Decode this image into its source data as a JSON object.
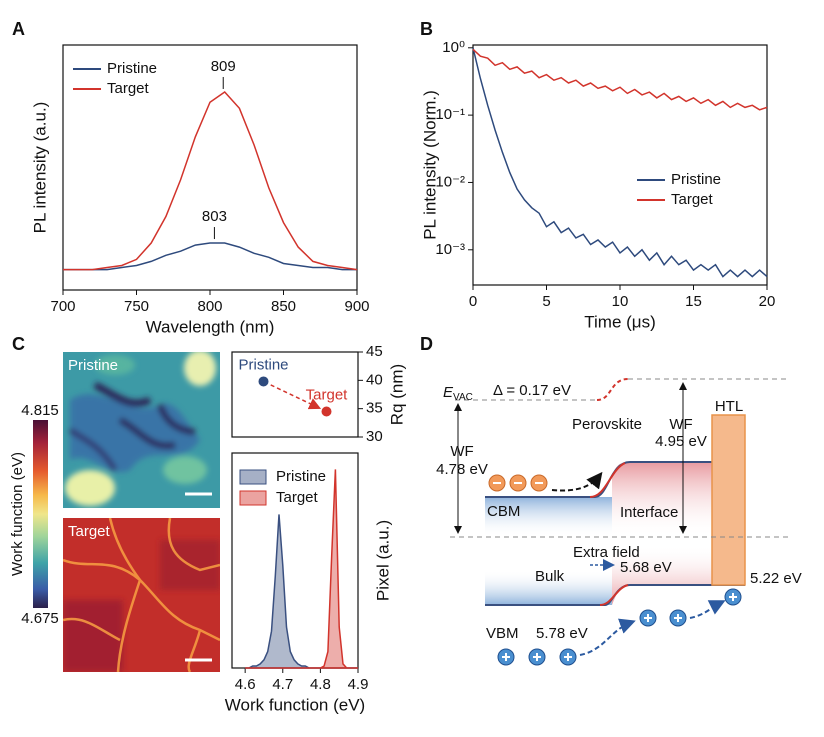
{
  "panel_labels": [
    "A",
    "B",
    "C",
    "D"
  ],
  "chart_data": [
    {
      "type": "line",
      "xlabel": "Wavelength (nm)",
      "ylabel": "PL intensity (a.u.)",
      "legend": "upper left",
      "x": [
        700,
        710,
        720,
        730,
        740,
        750,
        760,
        770,
        780,
        790,
        800,
        810,
        820,
        830,
        840,
        850,
        860,
        870,
        880,
        890,
        900
      ],
      "series": [
        {
          "name": "Pristine",
          "color": "#2e4a7d",
          "values": [
            0.1,
            0.1,
            0.1,
            0.1,
            0.11,
            0.12,
            0.14,
            0.17,
            0.19,
            0.22,
            0.23,
            0.23,
            0.21,
            0.18,
            0.16,
            0.13,
            0.12,
            0.11,
            0.11,
            0.1,
            0.1
          ],
          "peak": 803
        },
        {
          "name": "Target",
          "color": "#d2342c",
          "values": [
            0.1,
            0.1,
            0.1,
            0.11,
            0.12,
            0.15,
            0.23,
            0.36,
            0.54,
            0.75,
            0.92,
            0.97,
            0.89,
            0.71,
            0.5,
            0.33,
            0.21,
            0.14,
            0.12,
            0.11,
            0.1
          ],
          "peak": 809
        }
      ],
      "xlim": [
        700,
        900
      ],
      "xticks": [
        700,
        750,
        800,
        850,
        900
      ],
      "ylim": [
        0,
        1.2
      ]
    },
    {
      "type": "line",
      "xlabel": "Time (μs)",
      "ylabel": "PL intensity (Norm.)",
      "legend": "center right",
      "log_y": true,
      "x": [
        0,
        0.5,
        1,
        1.5,
        2,
        2.5,
        3,
        3.5,
        4,
        4.5,
        5,
        5.5,
        6,
        6.5,
        7,
        7.5,
        8,
        8.5,
        9,
        9.5,
        10,
        10.5,
        11,
        11.5,
        12,
        12.5,
        13,
        13.5,
        14,
        14.5,
        15,
        15.5,
        16,
        16.5,
        17,
        17.5,
        18,
        18.5,
        19,
        19.5,
        20
      ],
      "series": [
        {
          "name": "Pristine",
          "color": "#2e4a7d",
          "values": [
            1.0,
            0.35,
            0.14,
            0.06,
            0.028,
            0.014,
            0.008,
            0.0055,
            0.0042,
            0.0035,
            0.0022,
            0.0026,
            0.0018,
            0.0021,
            0.0015,
            0.0017,
            0.0012,
            0.0014,
            0.0011,
            0.0013,
            0.0009,
            0.0011,
            0.0008,
            0.001,
            0.0007,
            0.0009,
            0.0006,
            0.0008,
            0.0006,
            0.0007,
            0.0005,
            0.0006,
            0.0005,
            0.0006,
            0.0004,
            0.0005,
            0.0004,
            0.0005,
            0.0004,
            0.0005,
            0.0004
          ]
        },
        {
          "name": "Target",
          "color": "#d2342c",
          "values": [
            0.95,
            0.75,
            0.7,
            0.55,
            0.6,
            0.48,
            0.52,
            0.42,
            0.45,
            0.36,
            0.4,
            0.33,
            0.36,
            0.3,
            0.33,
            0.27,
            0.3,
            0.25,
            0.27,
            0.23,
            0.26,
            0.21,
            0.24,
            0.2,
            0.22,
            0.18,
            0.21,
            0.17,
            0.19,
            0.16,
            0.18,
            0.15,
            0.17,
            0.14,
            0.16,
            0.13,
            0.15,
            0.13,
            0.14,
            0.12,
            0.13
          ]
        }
      ],
      "xlim": [
        0,
        20
      ],
      "xticks": [
        0,
        5,
        10,
        15,
        20
      ],
      "ylim": [
        0.0003,
        1.1
      ],
      "yticks": [
        {
          "value": 1,
          "label": "10⁰"
        },
        {
          "value": 0.1,
          "label": "10⁻¹"
        },
        {
          "value": 0.01,
          "label": "10⁻²"
        },
        {
          "value": 0.001,
          "label": "10⁻³"
        }
      ]
    },
    {
      "type": "scatter",
      "ylabel": "Rq (nm)",
      "yaxis_side": "right",
      "series": [
        {
          "name": "Pristine",
          "color": "#2e4a7d",
          "values": [
            39.8
          ]
        },
        {
          "name": "Target",
          "color": "#d2342c",
          "values": [
            34.5
          ]
        }
      ],
      "ylim": [
        30,
        45
      ],
      "yticks": [
        30,
        35,
        40,
        45
      ]
    },
    {
      "type": "area",
      "xlabel": "Work function (eV)",
      "ylabel": "Pixel (a.u.)",
      "legend": "upper left",
      "x": [
        4.6,
        4.61,
        4.62,
        4.63,
        4.64,
        4.65,
        4.66,
        4.67,
        4.68,
        4.69,
        4.7,
        4.71,
        4.72,
        4.73,
        4.74,
        4.75,
        4.76,
        4.77,
        4.78,
        4.79,
        4.8,
        4.81,
        4.82,
        4.83,
        4.84,
        4.85,
        4.86,
        4.87,
        4.88,
        4.89,
        4.9
      ],
      "series": [
        {
          "name": "Pristine",
          "color": "#3a5080",
          "values": [
            0,
            0,
            0.01,
            0.01,
            0.02,
            0.04,
            0.08,
            0.18,
            0.45,
            0.75,
            0.5,
            0.2,
            0.08,
            0.04,
            0.02,
            0.01,
            0.01,
            0,
            0,
            0,
            0,
            0,
            0,
            0,
            0,
            0,
            0,
            0,
            0,
            0,
            0
          ]
        },
        {
          "name": "Target",
          "color": "#d2342c",
          "values": [
            0,
            0,
            0,
            0,
            0,
            0,
            0,
            0,
            0,
            0,
            0,
            0,
            0,
            0,
            0,
            0,
            0,
            0,
            0,
            0,
            0,
            0.01,
            0.08,
            0.55,
            0.97,
            0.2,
            0.02,
            0,
            0,
            0,
            0
          ]
        }
      ],
      "xlim": [
        4.565,
        4.9
      ],
      "xticks": [
        4.6,
        4.7,
        4.8,
        4.9
      ],
      "ylim": [
        0,
        1.05
      ]
    }
  ],
  "images": [
    {
      "label": "Pristine"
    },
    {
      "label": "Target"
    }
  ],
  "colorbar": {
    "label": "Work function (eV)",
    "max": 4.815,
    "min": 4.675
  },
  "diagram": {
    "evac_symbol": "E",
    "evac_subscript": "VAC",
    "delta": "Δ = 0.17 eV",
    "wf_left": [
      "WF",
      "4.78 eV"
    ],
    "perovskite": "Perovskite",
    "wf_right": [
      "WF",
      "4.95 eV"
    ],
    "htl": "HTL",
    "cbm": "CBM",
    "interface": "Interface",
    "extra_field": "Extra field",
    "bulk": "Bulk",
    "vbm": "VBM",
    "vbm_bulk": "5.78 eV",
    "vbm_interface": "5.68 eV",
    "htl_level": "5.22 eV"
  }
}
